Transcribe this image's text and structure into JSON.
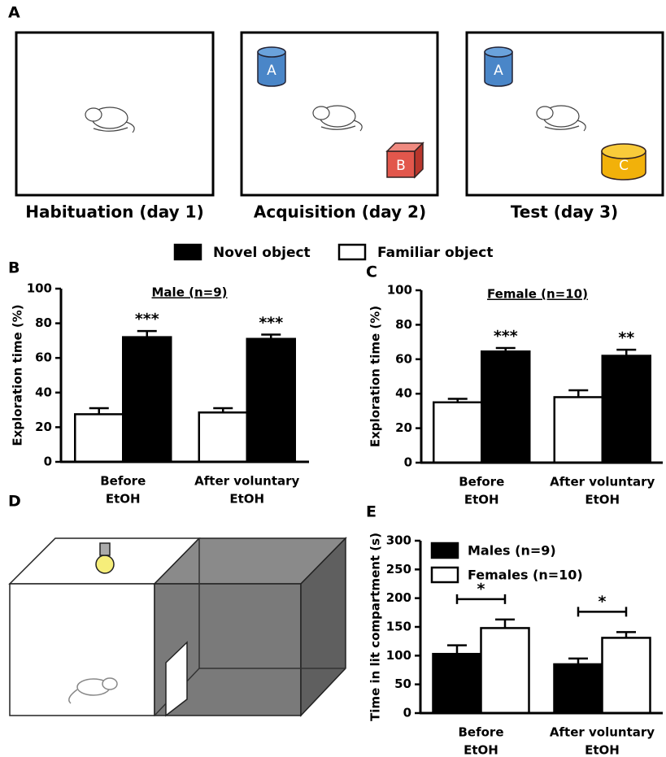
{
  "panel_labels": [
    "A",
    "B",
    "C",
    "D",
    "E"
  ],
  "arenas": [
    {
      "label": "Habituation (day 1)"
    },
    {
      "label": "Acquisition (day 2)",
      "objects": [
        "A",
        "B"
      ]
    },
    {
      "label": "Test (day 3)",
      "objects": [
        "A",
        "C"
      ]
    }
  ],
  "chart_data": [
    {
      "type": "bar",
      "title": "Male (n=9)",
      "y_label": "Exploration time (%)",
      "categories": [
        [
          "Before",
          "EtOH"
        ],
        [
          "After voluntary",
          "EtOH"
        ]
      ],
      "series": [
        {
          "name": "Familiar object",
          "color": "#ffffff",
          "values": [
            27.5,
            28.5
          ],
          "errors": [
            3.5,
            2.5
          ]
        },
        {
          "name": "Novel object",
          "color": "#000000",
          "values": [
            72,
            71
          ],
          "errors": [
            3.5,
            2.5
          ],
          "annotations": [
            "***",
            "***"
          ]
        }
      ],
      "ylim": [
        0,
        100
      ],
      "yticks": [
        0,
        20,
        40,
        60,
        80,
        100
      ],
      "grid": false,
      "legend": "top"
    },
    {
      "type": "bar",
      "title": "Female (n=10)",
      "y_label": "Exploration time (%)",
      "categories": [
        [
          "Before",
          "EtOH"
        ],
        [
          "After voluntary",
          "EtOH"
        ]
      ],
      "series": [
        {
          "name": "Familiar object",
          "color": "#ffffff",
          "values": [
            35,
            38
          ],
          "errors": [
            2,
            4
          ]
        },
        {
          "name": "Novel object",
          "color": "#000000",
          "values": [
            64.5,
            62
          ],
          "errors": [
            2,
            3.5
          ],
          "annotations": [
            "***",
            "**"
          ]
        }
      ],
      "ylim": [
        0,
        100
      ],
      "yticks": [
        0,
        20,
        40,
        60,
        80,
        100
      ],
      "grid": false
    },
    {
      "type": "bar",
      "y_label": "Time in lit compartment (s)",
      "categories": [
        [
          "Before",
          "EtOH"
        ],
        [
          "After voluntary",
          "EtOH"
        ]
      ],
      "series": [
        {
          "name": "Males (n=9)",
          "color": "#000000",
          "values": [
            103,
            85
          ],
          "errors": [
            15,
            10
          ]
        },
        {
          "name": "Females (n=10)",
          "color": "#ffffff",
          "values": [
            148,
            131
          ],
          "errors": [
            15,
            10
          ]
        }
      ],
      "comparisons": [
        "*",
        "*"
      ],
      "ylim": [
        0,
        300
      ],
      "yticks": [
        0,
        50,
        100,
        150,
        200,
        250,
        300
      ],
      "grid": false,
      "legend": "upper left"
    }
  ]
}
